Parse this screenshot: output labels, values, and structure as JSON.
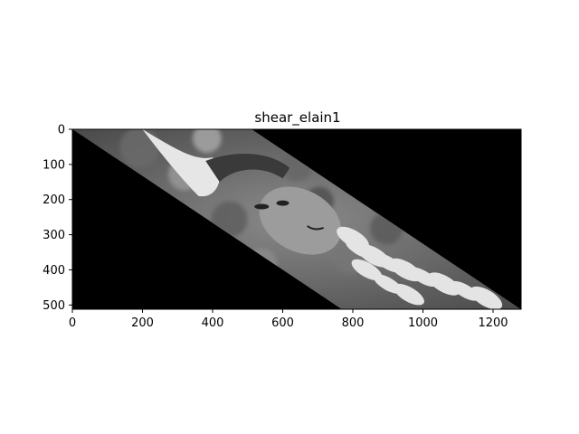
{
  "chart_data": {
    "type": "image",
    "title": "shear_elain1",
    "colormap": "gray",
    "image_description_shape": "parallelogram",
    "shear_corners": [
      [
        0,
        0
      ],
      [
        512,
        0
      ],
      [
        1280,
        512
      ],
      [
        768,
        512
      ]
    ],
    "xlim": [
      0,
      1280
    ],
    "ylim": [
      512,
      0
    ],
    "x_ticks": [
      0,
      200,
      400,
      600,
      800,
      1000,
      1200
    ],
    "x_tick_labels": [
      "0",
      "200",
      "400",
      "600",
      "800",
      "1000",
      "1200"
    ],
    "y_ticks": [
      0,
      100,
      200,
      300,
      400,
      500
    ],
    "y_tick_labels": [
      "0",
      "100",
      "200",
      "300",
      "400",
      "500"
    ],
    "background_color": "#000000",
    "grid": false
  }
}
